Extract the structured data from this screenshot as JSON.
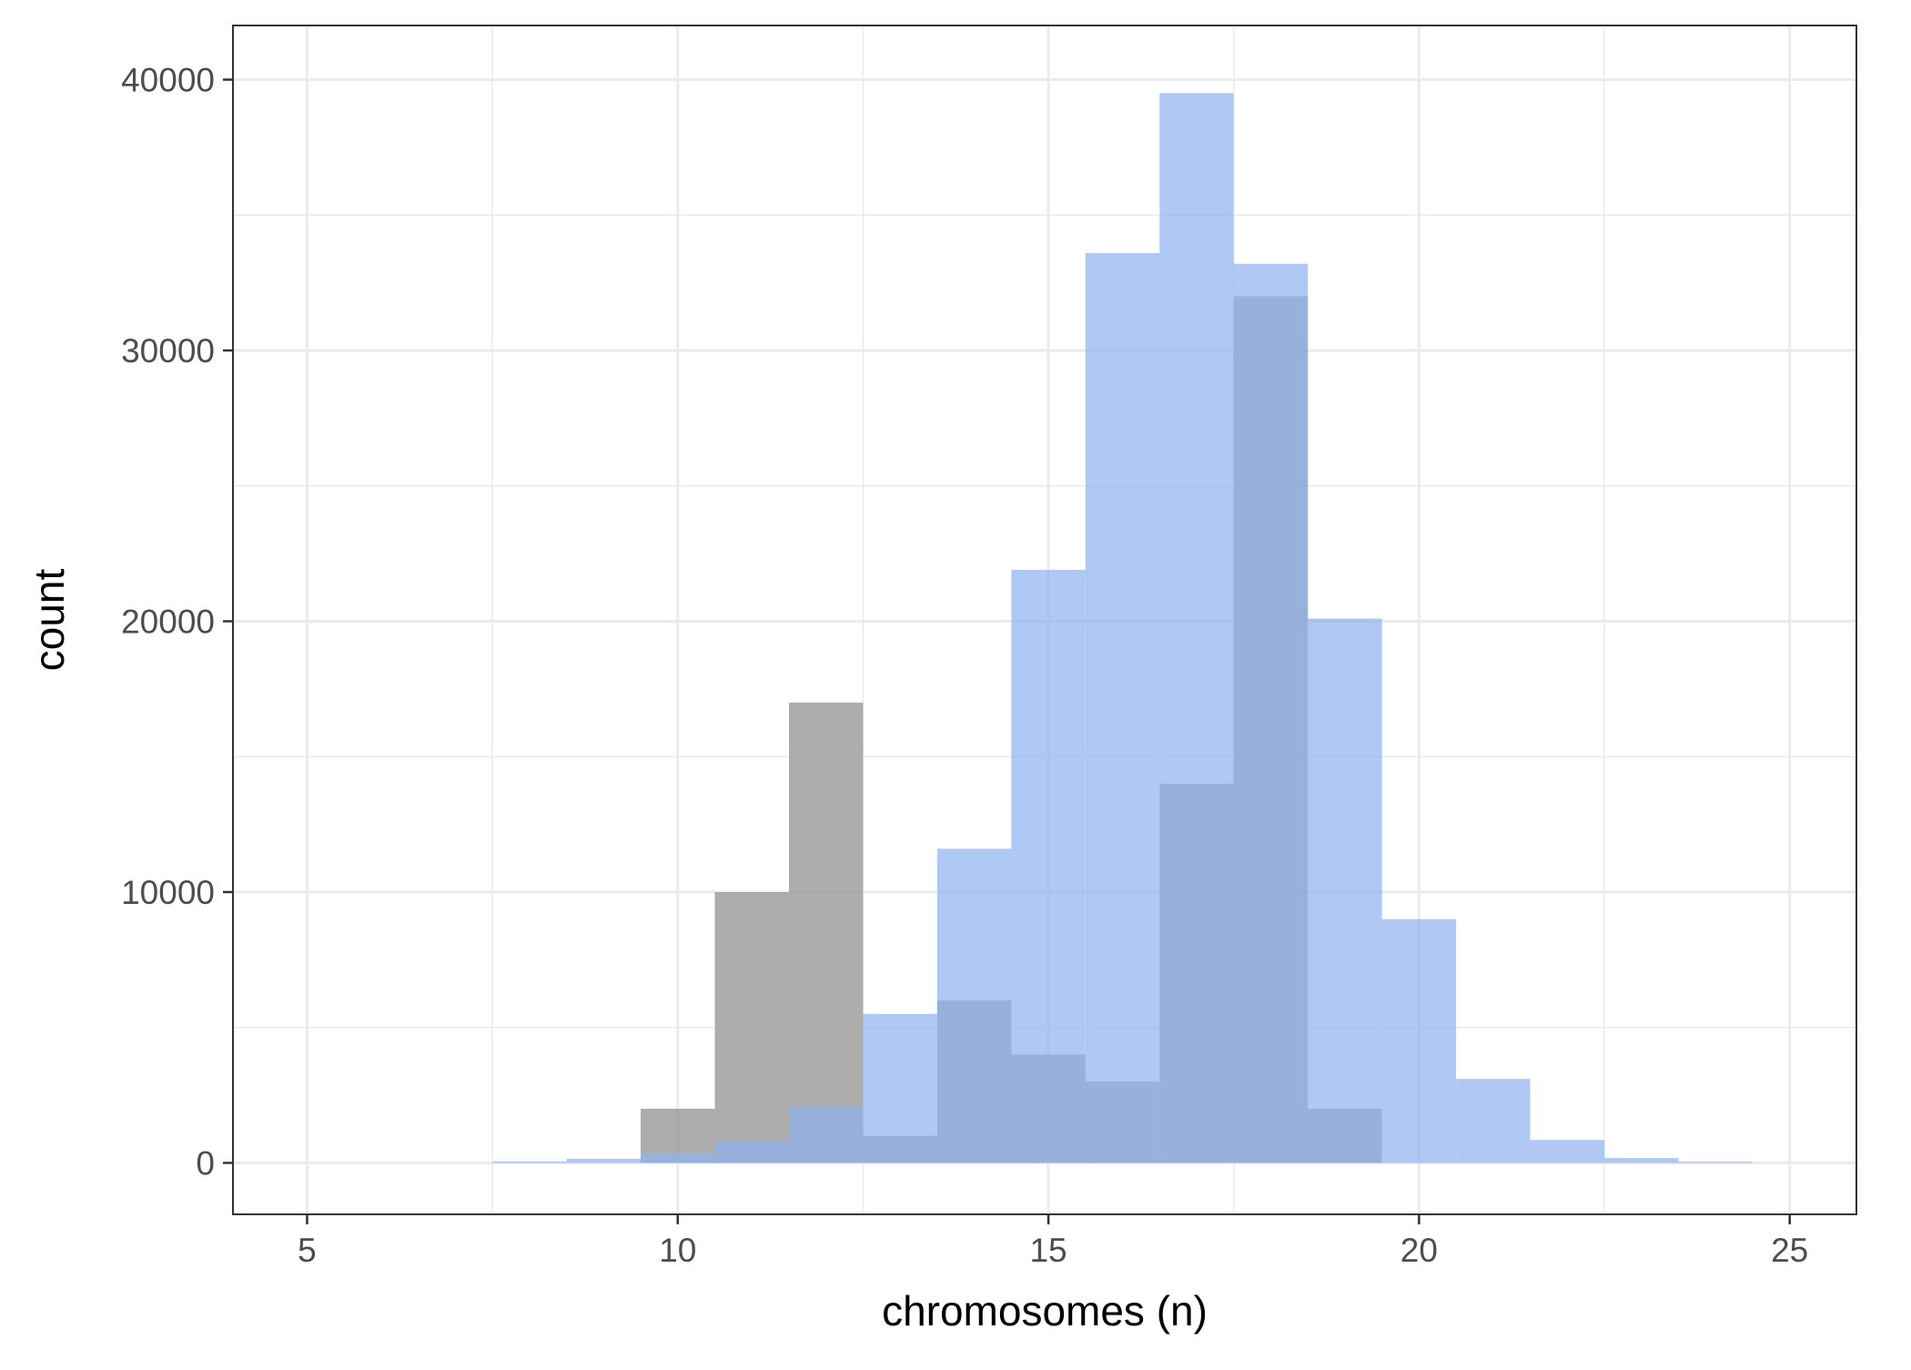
{
  "chart_data": {
    "type": "histogram",
    "title": "",
    "xlabel": "chromosomes (n)",
    "ylabel": "count",
    "xlim": [
      4,
      25.9
    ],
    "ylim": [
      -1900,
      42000
    ],
    "x_ticks": [
      5,
      10,
      15,
      20,
      25
    ],
    "y_ticks": [
      0,
      10000,
      20000,
      30000,
      40000
    ],
    "x_tick_labels": [
      "5",
      "10",
      "15",
      "20",
      "25"
    ],
    "y_tick_labels": [
      "0",
      "10000",
      "20000",
      "30000",
      "40000"
    ],
    "bin_width": 1,
    "grid": true,
    "legend": "none",
    "series": [
      {
        "color": "#999999",
        "opacity": 0.8,
        "bins": [
          {
            "x": 10,
            "count": 2000
          },
          {
            "x": 11,
            "count": 10000
          },
          {
            "x": 12,
            "count": 17000
          },
          {
            "x": 13,
            "count": 1000
          },
          {
            "x": 14,
            "count": 6000
          },
          {
            "x": 15,
            "count": 4000
          },
          {
            "x": 16,
            "count": 3000
          },
          {
            "x": 17,
            "count": 14000
          },
          {
            "x": 18,
            "count": 32000
          },
          {
            "x": 19,
            "count": 2000
          }
        ]
      },
      {
        "color": "#8DB2F0",
        "opacity": 0.7,
        "bins": [
          {
            "x": 8,
            "count": 50
          },
          {
            "x": 9,
            "count": 150
          },
          {
            "x": 10,
            "count": 350
          },
          {
            "x": 11,
            "count": 800
          },
          {
            "x": 12,
            "count": 2100
          },
          {
            "x": 13,
            "count": 5500
          },
          {
            "x": 14,
            "count": 11600
          },
          {
            "x": 15,
            "count": 21900
          },
          {
            "x": 16,
            "count": 33600
          },
          {
            "x": 17,
            "count": 39500
          },
          {
            "x": 18,
            "count": 33200
          },
          {
            "x": 19,
            "count": 20100
          },
          {
            "x": 20,
            "count": 9000
          },
          {
            "x": 21,
            "count": 3100
          },
          {
            "x": 22,
            "count": 850
          },
          {
            "x": 23,
            "count": 180
          },
          {
            "x": 24,
            "count": 40
          }
        ]
      }
    ]
  }
}
